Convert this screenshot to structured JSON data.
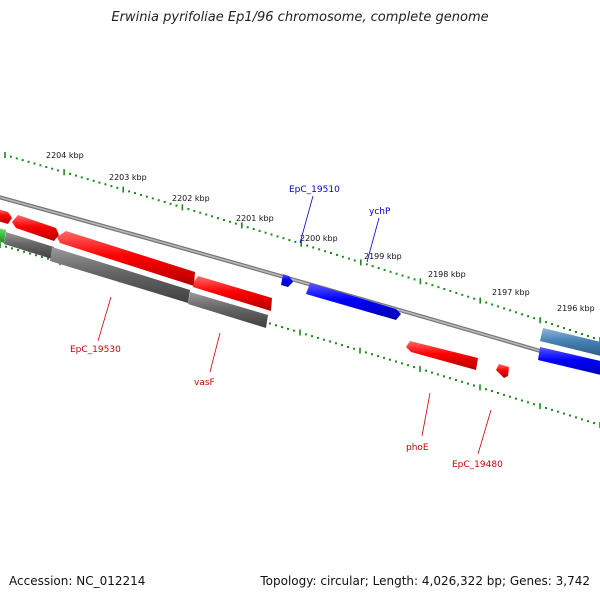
{
  "title": "Erwinia pyrifoliae Ep1/96 chromosome, complete genome",
  "footer": {
    "accession": "Accession: NC_012214",
    "stats": "Topology: circular; Length: 4,026,322 bp; Genes: 3,742"
  },
  "colors": {
    "scale_ticks": "#1a8a1a",
    "backbone": "#888888",
    "gene_forward_red": "#ff0000",
    "gene_blue": "#0000ff",
    "gene_steel": "#4682b4",
    "gene_gray": "#666666",
    "gene_green": "#22b022",
    "label_red": "#cc0000",
    "label_blue": "#0000cc"
  },
  "scale": {
    "unit": "kbp",
    "labels": [
      "2204 kbp",
      "2203 kbp",
      "2202 kbp",
      "2201 kbp",
      "2200 kbp",
      "2199 kbp",
      "2198 kbp",
      "2197 kbp",
      "2196 kbp"
    ]
  },
  "genes": [
    {
      "name": "EpC_19530",
      "color": "red"
    },
    {
      "name": "vasF",
      "color": "red"
    },
    {
      "name": "EpC_19510",
      "color": "blue"
    },
    {
      "name": "ychP",
      "color": "blue"
    },
    {
      "name": "phoE",
      "color": "red"
    },
    {
      "name": "EpC_19480",
      "color": "red"
    }
  ]
}
